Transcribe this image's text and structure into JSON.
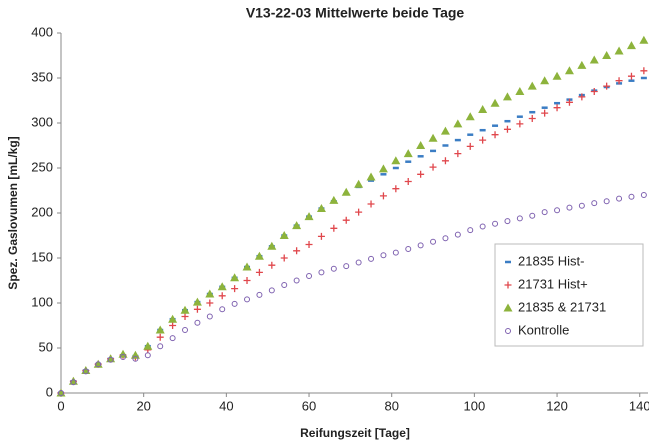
{
  "chart_data": {
    "type": "scatter",
    "title": "V13-22-03 Mittelwerte beide Tage",
    "xlabel": "Reifungszeit [Tage]",
    "ylabel": "Spez. Gaslovumen [mL/kg]",
    "x": [
      0,
      3,
      6,
      9,
      12,
      15,
      18,
      21,
      24,
      27,
      30,
      33,
      36,
      39,
      42,
      45,
      48,
      51,
      54,
      57,
      60,
      63,
      66,
      69,
      72,
      75,
      78,
      81,
      84,
      87,
      90,
      93,
      96,
      99,
      102,
      105,
      108,
      111,
      114,
      117,
      120,
      123,
      126,
      129,
      132,
      135,
      138,
      141
    ],
    "series": [
      {
        "name": "21835 Hist-",
        "color": "#3b7dc4",
        "marker": "dash",
        "values": [
          0,
          13,
          25,
          32,
          38,
          42,
          41,
          52,
          70,
          82,
          92,
          101,
          110,
          118,
          128,
          140,
          152,
          163,
          175,
          186,
          196,
          205,
          213,
          221,
          229,
          236,
          243,
          250,
          257,
          263,
          269,
          275,
          281,
          287,
          292,
          297,
          302,
          307,
          312,
          317,
          322,
          326,
          331,
          336,
          340,
          344,
          347,
          350
        ]
      },
      {
        "name": "21731 Hist+",
        "color": "#e0474c",
        "marker": "plus",
        "values": [
          0,
          13,
          25,
          32,
          38,
          42,
          40,
          48,
          62,
          75,
          85,
          93,
          100,
          108,
          116,
          125,
          134,
          142,
          150,
          158,
          165,
          174,
          183,
          192,
          201,
          210,
          219,
          227,
          235,
          243,
          251,
          258,
          266,
          274,
          281,
          287,
          293,
          299,
          305,
          311,
          317,
          323,
          329,
          335,
          341,
          347,
          352,
          358
        ]
      },
      {
        "name": "21835 & 21731",
        "color": "#8db33c",
        "marker": "triangle",
        "values": [
          0,
          13,
          25,
          32,
          38,
          43,
          42,
          52,
          70,
          82,
          92,
          101,
          110,
          118,
          128,
          140,
          152,
          163,
          175,
          186,
          196,
          205,
          214,
          223,
          232,
          240,
          249,
          258,
          266,
          275,
          283,
          291,
          299,
          307,
          315,
          322,
          329,
          335,
          341,
          347,
          352,
          358,
          364,
          370,
          375,
          380,
          386,
          392
        ]
      },
      {
        "name": "Kontrolle",
        "color": "#7f62b0",
        "marker": "circle",
        "values": [
          0,
          12,
          24,
          32,
          37,
          40,
          38,
          42,
          52,
          61,
          70,
          78,
          85,
          93,
          99,
          104,
          109,
          114,
          120,
          125,
          130,
          134,
          138,
          141,
          145,
          149,
          153,
          156,
          160,
          164,
          168,
          172,
          176,
          181,
          185,
          188,
          191,
          194,
          197,
          201,
          203,
          206,
          208,
          211,
          213,
          216,
          218,
          220
        ]
      }
    ],
    "xlim": [
      0,
      142
    ],
    "xticks": [
      0,
      20,
      40,
      60,
      80,
      100,
      120,
      140
    ],
    "ylim": [
      0,
      400
    ],
    "yticks": [
      0,
      50,
      100,
      150,
      200,
      250,
      300,
      350,
      400
    ],
    "grid": false,
    "legend": "lower right"
  }
}
